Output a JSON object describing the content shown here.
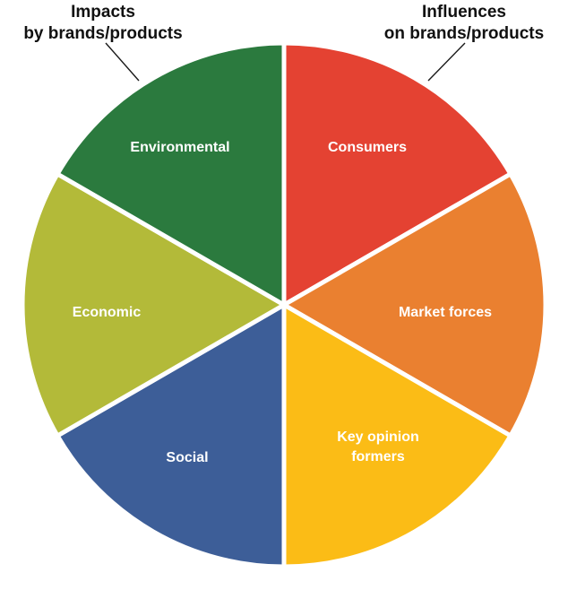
{
  "callouts": {
    "left": {
      "lines": [
        "Impacts",
        "by brands/products"
      ]
    },
    "right": {
      "lines": [
        "Influences",
        "on brands/products"
      ]
    }
  },
  "segments": [
    {
      "id": "consumers",
      "lines": [
        "Consumers"
      ],
      "color": "#e44232"
    },
    {
      "id": "market-forces",
      "lines": [
        "Market forces"
      ],
      "color": "#ea8030"
    },
    {
      "id": "key-opinion-formers",
      "lines": [
        "Key opinion",
        "formers"
      ],
      "color": "#fbbc16"
    },
    {
      "id": "social",
      "lines": [
        "Social"
      ],
      "color": "#3d5e98"
    },
    {
      "id": "economic",
      "lines": [
        "Economic"
      ],
      "color": "#b3ba39"
    },
    {
      "id": "environmental",
      "lines": [
        "Environmental"
      ],
      "color": "#2b7a3e"
    }
  ],
  "colors": {
    "outline": "#d0d0d0",
    "divider": "#ffffff",
    "leader_line": "#1a1a1a"
  }
}
